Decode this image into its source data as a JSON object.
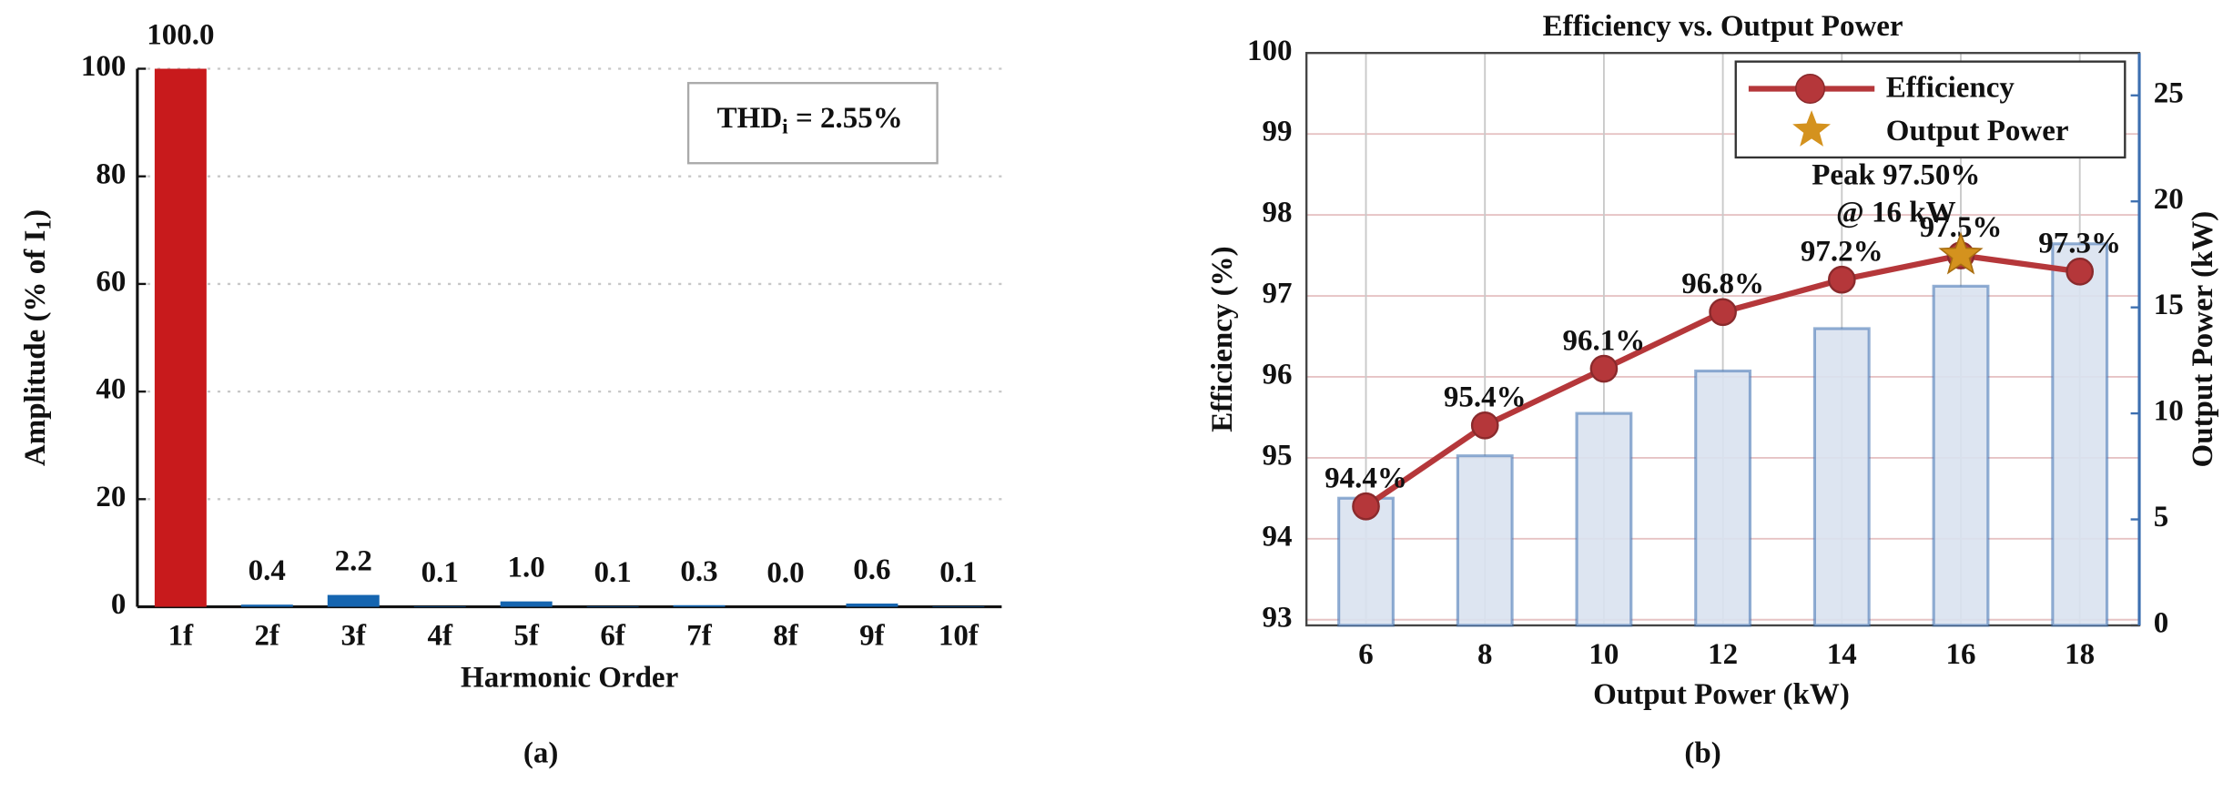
{
  "chart_data": [
    {
      "type": "bar",
      "caption": "(a)",
      "xlabel": "Harmonic Order",
      "ylabel": {
        "text": "Amplitude (% of I",
        "subscript": "1",
        "after": ")"
      },
      "annotation": {
        "text": "THD",
        "subscript": "i",
        "after": " = 2.55%"
      },
      "categories": [
        "1f",
        "2f",
        "3f",
        "4f",
        "5f",
        "6f",
        "7f",
        "8f",
        "9f",
        "10f"
      ],
      "values": [
        100.0,
        0.4,
        2.2,
        0.1,
        1.0,
        0.1,
        0.3,
        0.0,
        0.6,
        0.1
      ],
      "value_labels": [
        "100.0",
        "0.4",
        "2.2",
        "0.1",
        "1.0",
        "0.1",
        "0.3",
        "0.0",
        "0.6",
        "0.1"
      ],
      "colors": [
        "#c81a1c",
        "#1565b0",
        "#1565b0",
        "#1565b0",
        "#1565b0",
        "#1565b0",
        "#1565b0",
        "#1565b0",
        "#1565b0",
        "#1565b0"
      ],
      "ylim": [
        0,
        100
      ],
      "yticks": [
        0,
        20,
        40,
        60,
        80,
        100
      ],
      "grid": true
    },
    {
      "type": "combo",
      "caption": "(b)",
      "title": "Efficiency vs. Output Power",
      "xlabel": "Output Power (kW)",
      "ylabel": "Efficiency (%)",
      "y2label": "Output Power (kW)",
      "x": [
        6,
        8,
        10,
        12,
        14,
        16,
        18
      ],
      "xlim": [
        5,
        19
      ],
      "xticks": [
        6,
        8,
        10,
        12,
        14,
        16,
        18
      ],
      "ylim": [
        92.93,
        100
      ],
      "yticks": [
        93,
        94,
        95,
        96,
        97,
        98,
        99,
        100
      ],
      "y2lim": [
        0,
        27
      ],
      "y2ticks": [
        0,
        5,
        10,
        15,
        20,
        25
      ],
      "grid": true,
      "legend": "upper right",
      "series": [
        {
          "name": "Efficiency",
          "type": "line",
          "color": "#b5373a",
          "values": [
            94.4,
            95.4,
            96.1,
            96.8,
            97.2,
            97.5,
            97.3
          ],
          "value_labels": [
            "94.4%",
            "95.4%",
            "96.1%",
            "96.8%",
            "97.2%",
            "97.5%",
            "97.3%"
          ]
        },
        {
          "name": "Output Power",
          "type": "bar",
          "axis": "y2",
          "color": "#3d6fb0",
          "fill": "#d9e2f0",
          "legend_marker": "star",
          "values": [
            6,
            8,
            10,
            12,
            14,
            16,
            18
          ]
        }
      ],
      "peak": {
        "x": 16,
        "value": 97.5,
        "color": "#d4921e",
        "label": [
          "Peak 97.50%",
          "@ 16 kW"
        ]
      }
    }
  ]
}
